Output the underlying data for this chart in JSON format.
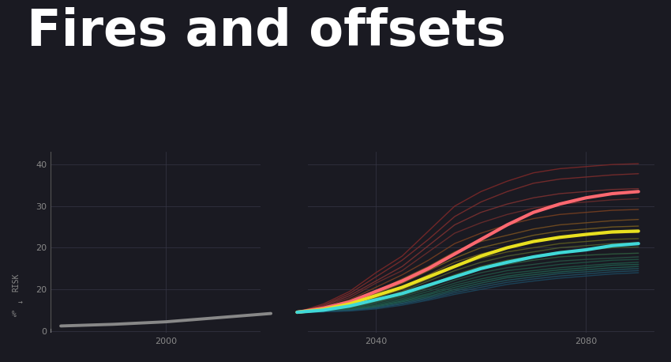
{
  "title": "Fires and offsets",
  "bg_color": "#1a1a22",
  "grid_color": "#363645",
  "title_color": "#ffffff",
  "hist_x": [
    1980,
    1985,
    1990,
    1995,
    2000,
    2005,
    2010,
    2015,
    2020
  ],
  "hist_y": [
    1.2,
    1.4,
    1.6,
    1.9,
    2.2,
    2.7,
    3.2,
    3.7,
    4.2
  ],
  "future_x": [
    2025,
    2030,
    2035,
    2040,
    2045,
    2050,
    2055,
    2060,
    2065,
    2070,
    2075,
    2080,
    2085,
    2090
  ],
  "highlight_lines": [
    {
      "y": [
        4.5,
        5.5,
        7.0,
        9.5,
        12.0,
        15.0,
        18.5,
        22.0,
        25.5,
        28.5,
        30.5,
        32.0,
        33.0,
        33.5
      ],
      "color": "#ff6870",
      "lw": 3.0,
      "zorder": 10
    },
    {
      "y": [
        4.5,
        5.2,
        6.5,
        8.5,
        10.5,
        13.0,
        15.5,
        18.0,
        20.0,
        21.5,
        22.5,
        23.2,
        23.8,
        24.0
      ],
      "color": "#e8e020",
      "lw": 3.0,
      "zorder": 10
    },
    {
      "y": [
        4.5,
        5.0,
        6.0,
        7.5,
        9.0,
        11.0,
        13.0,
        15.0,
        16.5,
        17.8,
        18.8,
        19.5,
        20.5,
        21.0
      ],
      "color": "#40d8d8",
      "lw": 3.0,
      "zorder": 10
    }
  ],
  "thin_lines": [
    {
      "y": [
        4.5,
        6.5,
        9.5,
        14.0,
        18.0,
        24.0,
        30.0,
        33.5,
        36.0,
        38.0,
        39.0,
        39.5,
        40.0,
        40.2
      ],
      "color": "#7a2828",
      "lw": 1.0,
      "alpha": 0.9
    },
    {
      "y": [
        4.5,
        6.2,
        9.0,
        13.0,
        17.0,
        22.0,
        27.5,
        31.0,
        33.5,
        35.5,
        36.5,
        37.0,
        37.5,
        37.8
      ],
      "color": "#7a2c2c",
      "lw": 1.0,
      "alpha": 0.9
    },
    {
      "y": [
        4.5,
        6.0,
        8.5,
        12.0,
        15.5,
        20.5,
        25.5,
        28.5,
        30.5,
        32.0,
        33.0,
        33.5,
        34.0,
        34.2
      ],
      "color": "#7a3030",
      "lw": 1.0,
      "alpha": 0.9
    },
    {
      "y": [
        4.5,
        5.8,
        8.0,
        11.5,
        14.5,
        19.0,
        23.5,
        26.0,
        28.0,
        29.5,
        30.5,
        31.0,
        31.5,
        31.8
      ],
      "color": "#6a2c2c",
      "lw": 1.0,
      "alpha": 0.9
    },
    {
      "y": [
        4.5,
        5.5,
        7.5,
        10.5,
        13.5,
        17.0,
        21.0,
        23.5,
        25.5,
        27.0,
        28.0,
        28.5,
        29.0,
        29.2
      ],
      "color": "#7a4020",
      "lw": 1.0,
      "alpha": 0.85
    },
    {
      "y": [
        4.5,
        5.3,
        7.0,
        9.5,
        12.5,
        15.5,
        19.0,
        21.5,
        23.0,
        24.5,
        25.5,
        26.0,
        26.5,
        26.8
      ],
      "color": "#7a5020",
      "lw": 1.0,
      "alpha": 0.85
    },
    {
      "y": [
        4.5,
        5.2,
        6.5,
        9.0,
        11.5,
        14.5,
        17.5,
        20.0,
        21.5,
        23.0,
        24.0,
        24.5,
        25.0,
        25.2
      ],
      "color": "#7a6020",
      "lw": 1.0,
      "alpha": 0.85
    },
    {
      "y": [
        4.5,
        5.1,
        6.2,
        8.5,
        10.5,
        13.5,
        16.5,
        18.5,
        20.0,
        21.5,
        22.5,
        23.0,
        23.5,
        23.7
      ],
      "color": "#706020",
      "lw": 1.0,
      "alpha": 0.85
    },
    {
      "y": [
        4.5,
        5.0,
        6.0,
        8.0,
        10.0,
        12.5,
        15.5,
        17.5,
        19.0,
        20.0,
        21.0,
        21.5,
        22.0,
        22.2
      ],
      "color": "#606020",
      "lw": 1.0,
      "alpha": 0.85
    },
    {
      "y": [
        4.5,
        5.0,
        5.8,
        7.5,
        9.5,
        12.0,
        14.5,
        16.5,
        18.0,
        19.0,
        20.0,
        20.5,
        21.0,
        21.2
      ],
      "color": "#506030",
      "lw": 1.0,
      "alpha": 0.85
    },
    {
      "y": [
        4.5,
        5.0,
        5.6,
        7.2,
        9.0,
        11.0,
        13.5,
        15.5,
        17.0,
        18.0,
        19.0,
        19.5,
        20.0,
        20.2
      ],
      "color": "#406030",
      "lw": 1.0,
      "alpha": 0.85
    },
    {
      "y": [
        4.5,
        5.0,
        5.5,
        7.0,
        8.5,
        10.5,
        13.0,
        15.0,
        16.0,
        17.0,
        17.8,
        18.2,
        18.5,
        18.7
      ],
      "color": "#306040",
      "lw": 1.0,
      "alpha": 0.85
    },
    {
      "y": [
        4.5,
        5.0,
        5.4,
        6.8,
        8.2,
        10.0,
        12.2,
        14.0,
        15.2,
        16.0,
        16.8,
        17.2,
        17.5,
        17.8
      ],
      "color": "#285545",
      "lw": 1.0,
      "alpha": 0.85
    },
    {
      "y": [
        4.5,
        5.0,
        5.3,
        6.5,
        7.8,
        9.5,
        11.5,
        13.2,
        14.5,
        15.2,
        16.0,
        16.5,
        17.0,
        17.2
      ],
      "color": "#205545",
      "lw": 1.0,
      "alpha": 0.85
    },
    {
      "y": [
        4.5,
        4.8,
        5.2,
        6.2,
        7.5,
        9.0,
        11.0,
        12.5,
        13.8,
        14.5,
        15.2,
        15.7,
        16.2,
        16.5
      ],
      "color": "#205848",
      "lw": 1.0,
      "alpha": 0.85
    },
    {
      "y": [
        4.5,
        4.8,
        5.1,
        6.0,
        7.2,
        8.7,
        10.5,
        12.0,
        13.2,
        14.0,
        14.7,
        15.2,
        15.8,
        16.0
      ],
      "color": "#206050",
      "lw": 1.0,
      "alpha": 0.85
    },
    {
      "y": [
        4.5,
        4.7,
        5.0,
        5.8,
        7.0,
        8.3,
        10.0,
        11.5,
        12.8,
        13.5,
        14.2,
        14.7,
        15.2,
        15.5
      ],
      "color": "#206055",
      "lw": 1.0,
      "alpha": 0.85
    },
    {
      "y": [
        4.5,
        4.7,
        5.0,
        5.6,
        6.7,
        8.0,
        9.6,
        11.0,
        12.2,
        13.0,
        13.8,
        14.2,
        14.7,
        15.0
      ],
      "color": "#1f5860",
      "lw": 1.0,
      "alpha": 0.85
    },
    {
      "y": [
        4.5,
        4.6,
        4.9,
        5.5,
        6.5,
        7.7,
        9.2,
        10.5,
        11.7,
        12.5,
        13.2,
        13.7,
        14.2,
        14.5
      ],
      "color": "#1f5065",
      "lw": 1.0,
      "alpha": 0.85
    },
    {
      "y": [
        4.5,
        4.6,
        4.8,
        5.3,
        6.2,
        7.4,
        8.8,
        10.0,
        11.2,
        12.0,
        12.7,
        13.2,
        13.7,
        14.0
      ],
      "color": "#1a4860",
      "lw": 1.0,
      "alpha": 0.85
    }
  ]
}
